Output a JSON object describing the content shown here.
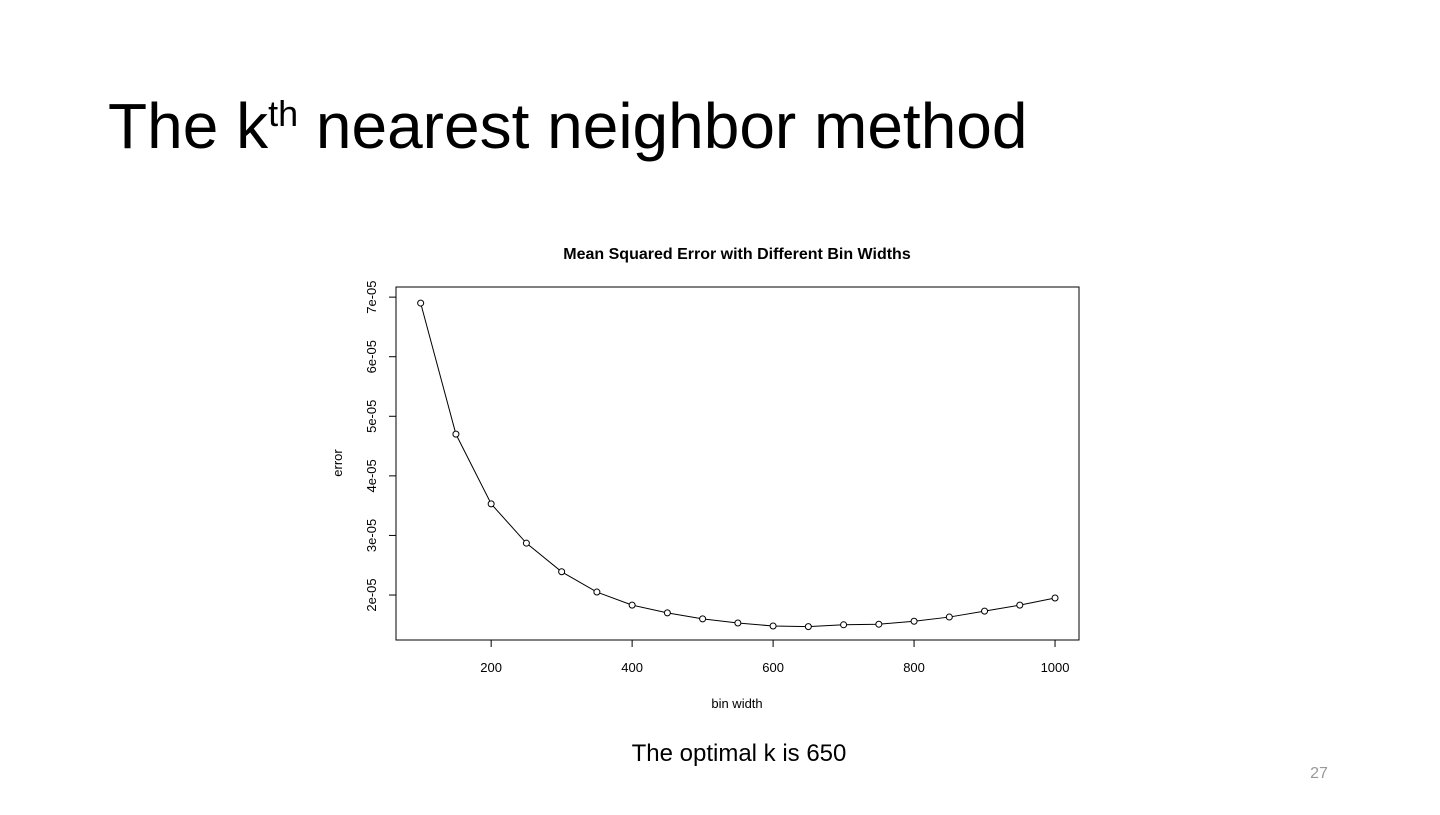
{
  "slide": {
    "title_main": "The k",
    "title_sup": "th",
    "title_rest": " nearest neighbor method",
    "caption": "The optimal k is 650",
    "page_number": "27"
  },
  "chart_data": {
    "type": "line",
    "title": "Mean Squared Error with Different Bin Widths",
    "x_label": "bin width",
    "y_label": "error",
    "x": [
      100,
      150,
      200,
      250,
      300,
      350,
      400,
      450,
      500,
      550,
      600,
      650,
      700,
      750,
      800,
      850,
      900,
      950,
      1000
    ],
    "series": [
      {
        "name": "error",
        "color": "#000000",
        "values": [
          6.9e-05,
          4.7e-05,
          3.53e-05,
          2.87e-05,
          2.39e-05,
          2.05e-05,
          1.83e-05,
          1.7e-05,
          1.6e-05,
          1.53e-05,
          1.48e-05,
          1.47e-05,
          1.5e-05,
          1.51e-05,
          1.56e-05,
          1.63e-05,
          1.73e-05,
          1.83e-05,
          1.95e-05
        ]
      }
    ],
    "xlim": [
      65,
      1034
    ],
    "ylim": [
      1.245e-05,
      7.17e-05
    ],
    "xticks": [
      200,
      400,
      600,
      800,
      1000
    ],
    "yticks": [
      {
        "value": 2e-05,
        "label": "2e-05"
      },
      {
        "value": 3e-05,
        "label": "3e-05"
      },
      {
        "value": 4e-05,
        "label": "4e-05"
      },
      {
        "value": 5e-05,
        "label": "5e-05"
      },
      {
        "value": 6e-05,
        "label": "6e-05"
      },
      {
        "value": 7e-05,
        "label": "7e-05"
      }
    ],
    "grid": false
  }
}
